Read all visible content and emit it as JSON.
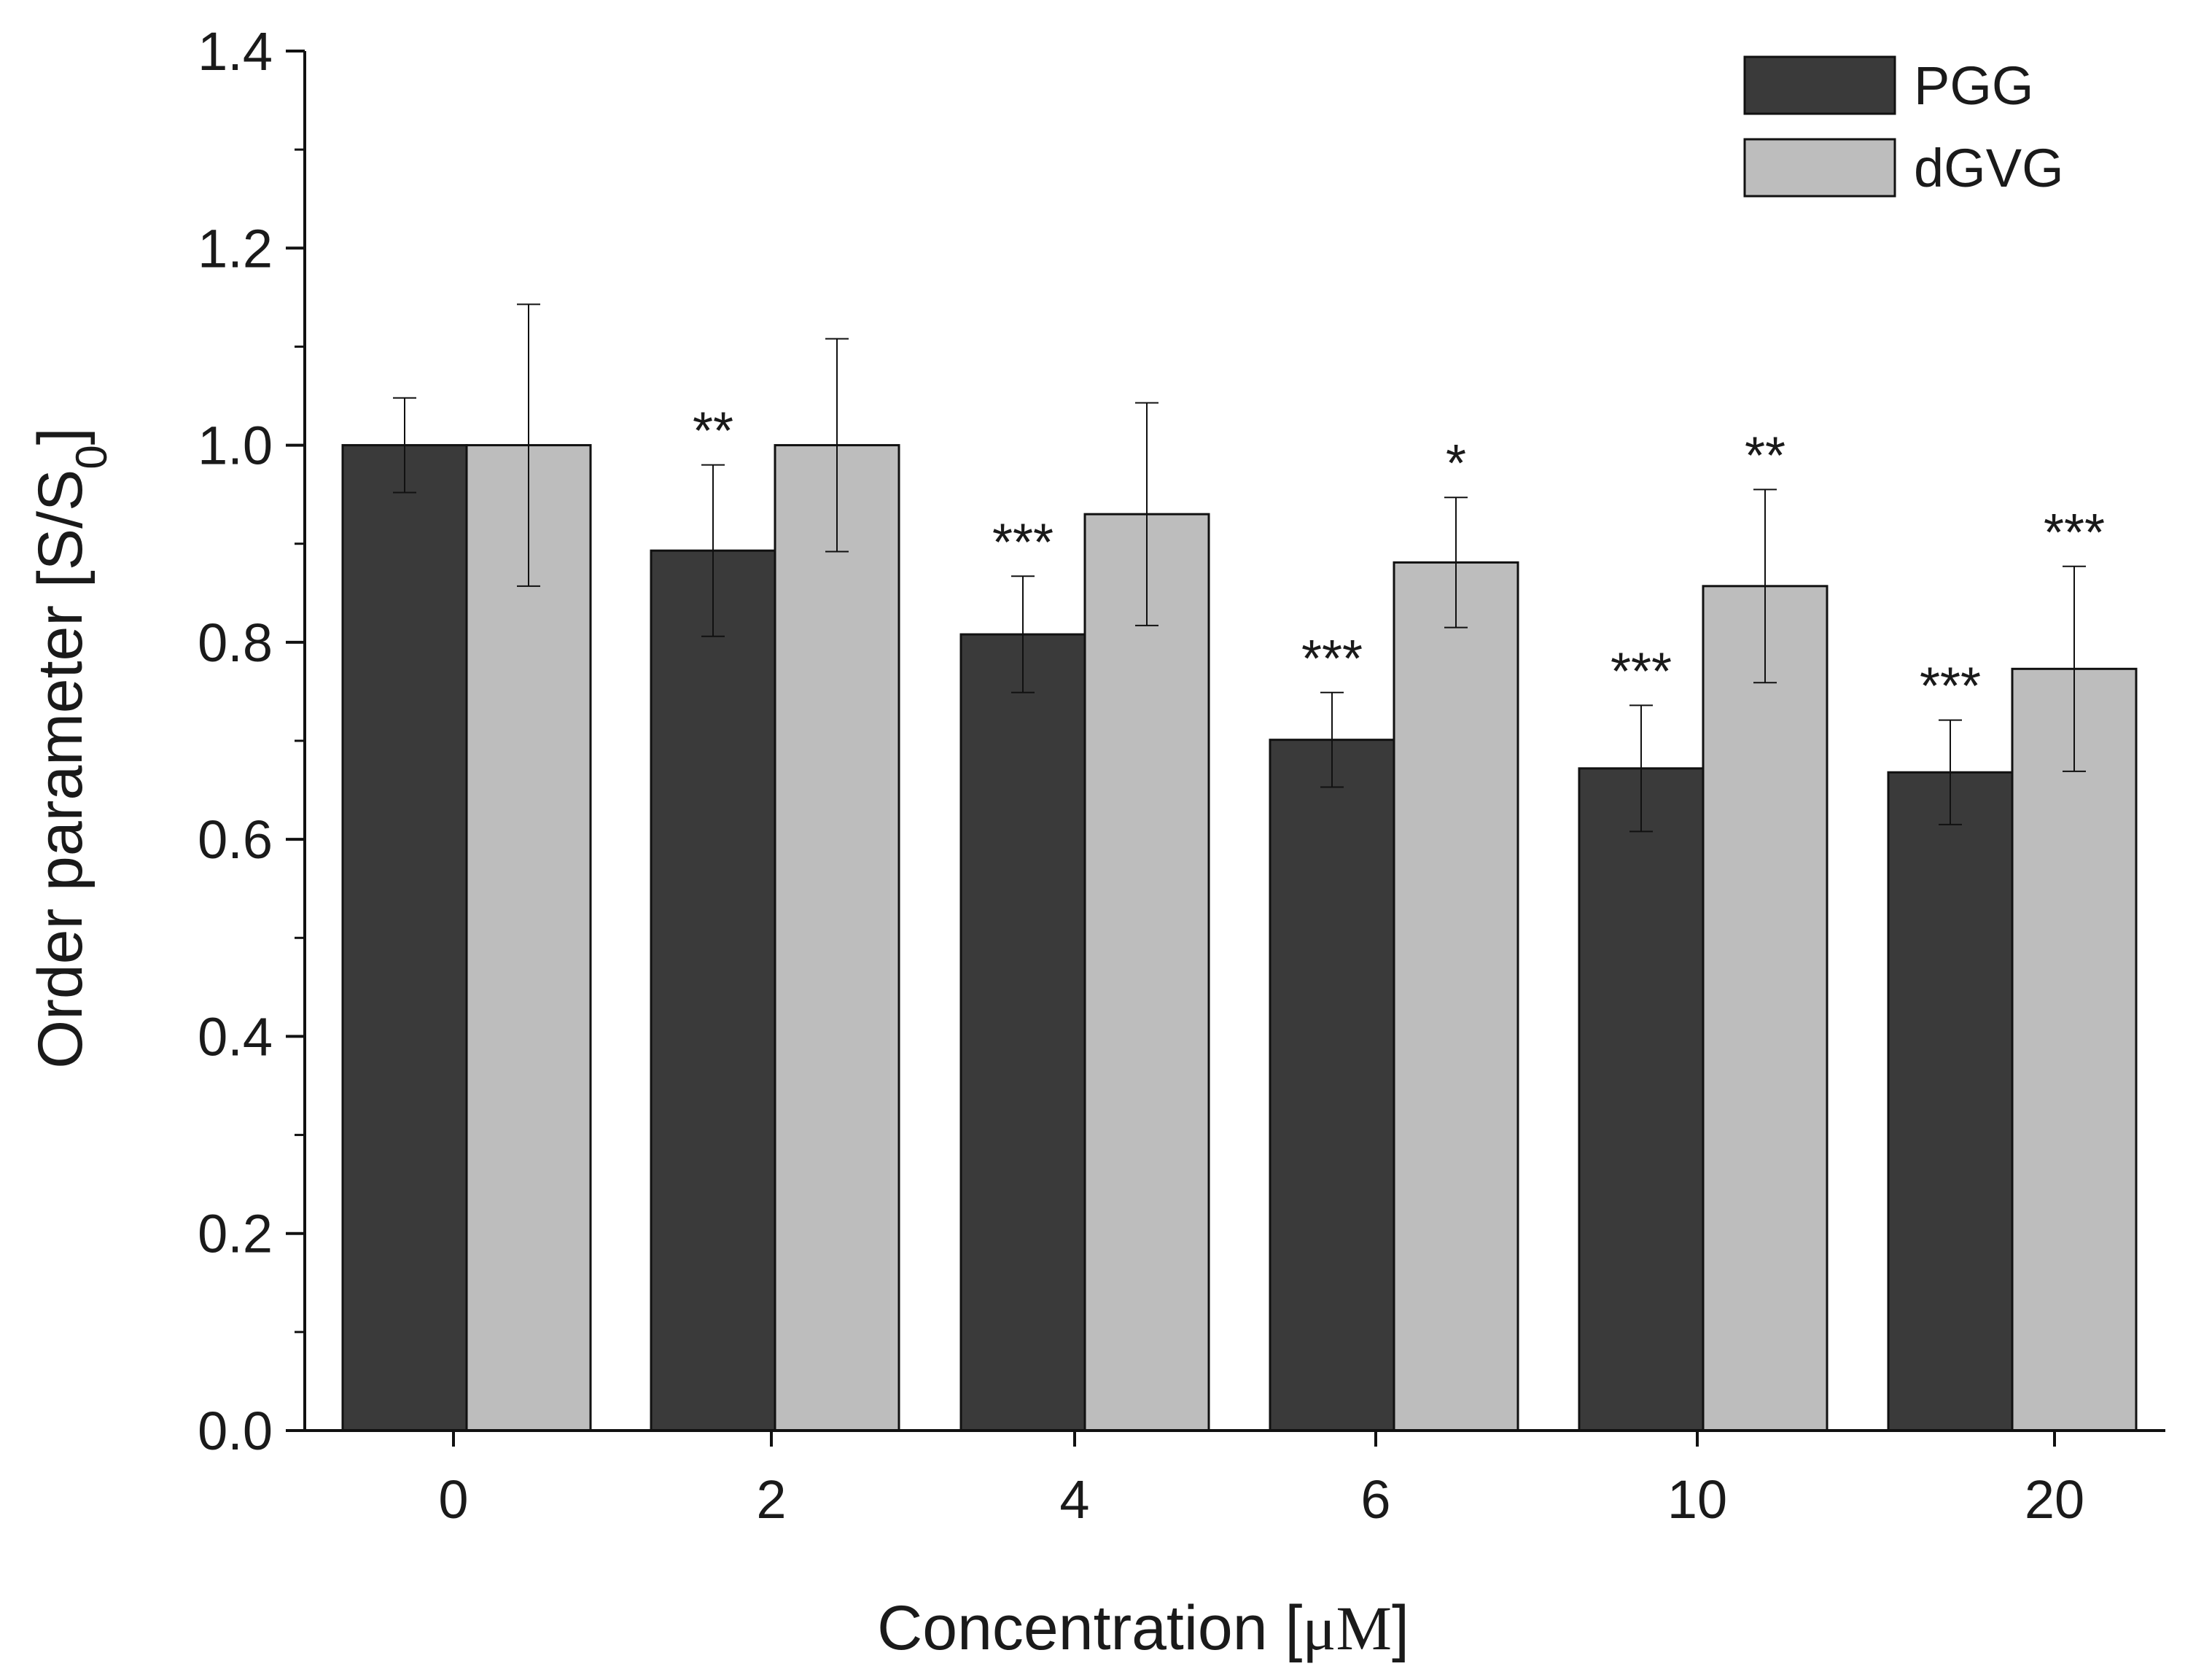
{
  "chart_data": {
    "type": "bar",
    "title": "",
    "xlabel": "Concentration [",
    "xlabel_unit": "μM",
    "xlabel_end": "]",
    "ylabel": "Order parameter [S/S",
    "ylabel_sub": "0",
    "ylabel_end": "]",
    "ylim": [
      0.0,
      1.4
    ],
    "yticks": [
      "0.0",
      "0.2",
      "0.4",
      "0.6",
      "0.8",
      "1.0",
      "1.2",
      "1.4"
    ],
    "categories": [
      "0",
      "2",
      "4",
      "6",
      "10",
      "20"
    ],
    "legend_position": "top-right",
    "series": [
      {
        "name": "PGG",
        "color": "#3a3a3a",
        "values": [
          1.0,
          0.893,
          0.808,
          0.701,
          0.672,
          0.668
        ],
        "errors": [
          0.048,
          0.087,
          0.059,
          0.048,
          0.064,
          0.053
        ],
        "significance": [
          "",
          "**",
          "***",
          "***",
          "***",
          "***"
        ]
      },
      {
        "name": "dGVG",
        "color": "#bdbdbd",
        "values": [
          1.0,
          1.0,
          0.93,
          0.881,
          0.857,
          0.773
        ],
        "errors": [
          0.143,
          0.108,
          0.113,
          0.066,
          0.098,
          0.104
        ],
        "significance": [
          "",
          "",
          "",
          "*",
          "**",
          "***"
        ]
      }
    ]
  }
}
